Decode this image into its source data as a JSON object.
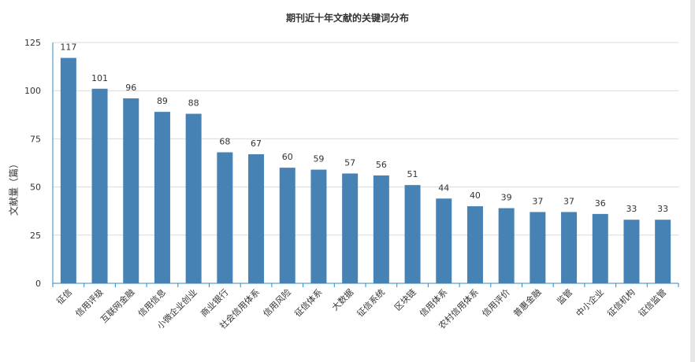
{
  "chart_data": {
    "type": "bar",
    "title": "期刊近十年文献的关键词分布",
    "xlabel": "",
    "ylabel": "文献量（篇）",
    "ylim": [
      0,
      125
    ],
    "yticks": [
      0,
      25,
      50,
      75,
      100,
      125
    ],
    "grid": true,
    "legend": "none",
    "bar_color": "#4682b4",
    "axis_color": "#2e8bbd",
    "categories": [
      "征信",
      "信用评级",
      "互联网金融",
      "信用信息",
      "小微企业创业",
      "商业银行",
      "社会信用体系",
      "信用风险",
      "征信体系",
      "大数据",
      "征信系统",
      "区块链",
      "信用体系",
      "农村信用体系",
      "信用评价",
      "普惠金融",
      "监管",
      "中小企业",
      "征信机构",
      "征信监管"
    ],
    "values": [
      117,
      101,
      96,
      89,
      88,
      68,
      67,
      60,
      59,
      57,
      56,
      51,
      44,
      40,
      39,
      37,
      37,
      36,
      33,
      33
    ]
  }
}
